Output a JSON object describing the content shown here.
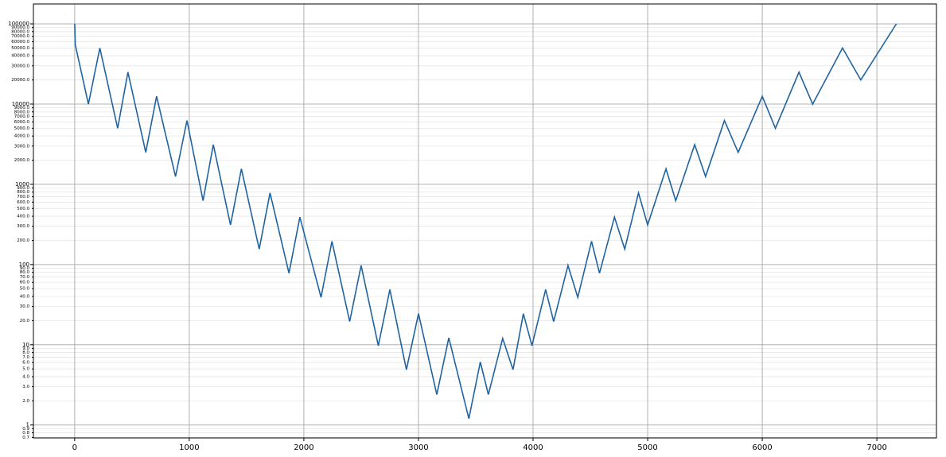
{
  "chart_data": {
    "type": "line",
    "log_y": true,
    "grid": true,
    "color": "#1f63a0",
    "x": [
      0,
      5,
      120,
      220,
      375,
      465,
      620,
      715,
      880,
      980,
      1120,
      1210,
      1360,
      1455,
      1610,
      1705,
      1870,
      1965,
      2150,
      2245,
      2400,
      2500,
      2650,
      2750,
      2895,
      3000,
      3160,
      3265,
      3440,
      3540,
      3610,
      3735,
      3825,
      3915,
      3990,
      4110,
      4180,
      4305,
      4390,
      4510,
      4580,
      4710,
      4800,
      4920,
      5000,
      5160,
      5245,
      5410,
      5505,
      5670,
      5790,
      6000,
      6115,
      6320,
      6440,
      6700,
      6860,
      7170
    ],
    "values": [
      100000,
      55000,
      10000,
      50000,
      5000,
      25000,
      2500,
      12500,
      1250,
      6250,
      625,
      3125,
      312,
      1560,
      156,
      780,
      78,
      390,
      39,
      195,
      19.5,
      97.5,
      9.75,
      48.8,
      4.9,
      24.4,
      2.4,
      12.2,
      1.2,
      6.1,
      2.4,
      12,
      4.9,
      24.4,
      9.75,
      48.8,
      19.5,
      97.5,
      39,
      195,
      78,
      390,
      156,
      780,
      312,
      1560,
      625,
      3125,
      1250,
      6250,
      2500,
      12500,
      5000,
      25000,
      10000,
      50000,
      20000,
      100000
    ],
    "xlim": [
      -360,
      7520
    ],
    "xticks": [
      0,
      1000,
      2000,
      3000,
      4000,
      5000,
      6000,
      7000
    ],
    "ylim": [
      0.69,
      177000
    ],
    "yticks": [
      0.7,
      0.8,
      0.9,
      1,
      {
        "value": 2,
        "label": "2.0"
      },
      {
        "value": 3,
        "label": "3.0"
      },
      {
        "value": 4,
        "label": "4.0"
      },
      {
        "value": 5,
        "label": "5.0"
      },
      {
        "value": 6,
        "label": "6.0"
      },
      {
        "value": 7,
        "label": "7.0"
      },
      {
        "value": 8,
        "label": "8.0"
      },
      {
        "value": 9,
        "label": "9.0"
      },
      10,
      {
        "value": 20,
        "label": "20.0"
      },
      {
        "value": 30,
        "label": "30.0"
      },
      {
        "value": 40,
        "label": "40.0"
      },
      {
        "value": 50,
        "label": "50.0"
      },
      {
        "value": 60,
        "label": "60.0"
      },
      {
        "value": 70,
        "label": "70.0"
      },
      {
        "value": 80,
        "label": "80.0"
      },
      {
        "value": 90,
        "label": "90.0"
      },
      100,
      {
        "value": 200,
        "label": "200.0"
      },
      {
        "value": 300,
        "label": "300.0"
      },
      {
        "value": 400,
        "label": "400.0"
      },
      {
        "value": 500,
        "label": "500.0"
      },
      {
        "value": 600,
        "label": "600.0"
      },
      {
        "value": 700,
        "label": "700.0"
      },
      {
        "value": 800,
        "label": "800.0"
      },
      {
        "value": 900,
        "label": "900.0"
      },
      1000,
      {
        "value": 2000,
        "label": "2000.0"
      },
      {
        "value": 3000,
        "label": "3000.0"
      },
      {
        "value": 4000,
        "label": "4000.0"
      },
      {
        "value": 5000,
        "label": "5000.0"
      },
      {
        "value": 6000,
        "label": "6000.0"
      },
      {
        "value": 7000,
        "label": "7000.0"
      },
      {
        "value": 8000,
        "label": "8000.0"
      },
      {
        "value": 9000,
        "label": "9000.0"
      },
      10000,
      {
        "value": 20000,
        "label": "20000.0"
      },
      {
        "value": 30000,
        "label": "30000.0"
      },
      {
        "value": 40000,
        "label": "40000.0"
      },
      {
        "value": 50000,
        "label": "50000.0"
      },
      {
        "value": 60000,
        "label": "60000.0"
      },
      {
        "value": 70000,
        "label": "70000.0"
      },
      {
        "value": 80000,
        "label": "80000.0"
      },
      {
        "value": 90000,
        "label": "90000.0"
      },
      100000
    ]
  }
}
